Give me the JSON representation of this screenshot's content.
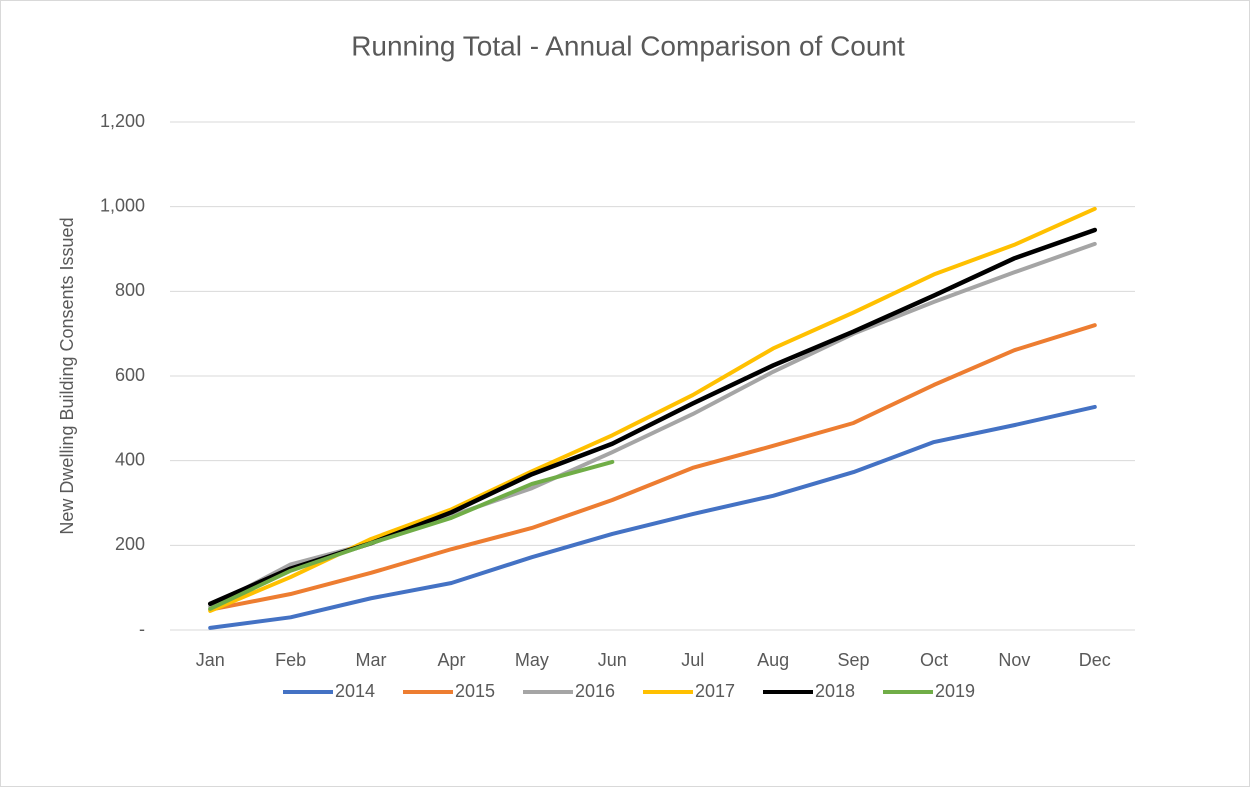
{
  "chart_data": {
    "type": "line",
    "title": "Running Total - Annual Comparison of Count",
    "y_label": "New Dwelling Building Consents Issued",
    "categories": [
      "Jan",
      "Feb",
      "Mar",
      "Apr",
      "May",
      "Jun",
      "Jul",
      "Aug",
      "Sep",
      "Oct",
      "Nov",
      "Dec"
    ],
    "series": [
      {
        "name": "2014",
        "color": "#4472c4",
        "values": [
          5,
          30,
          75,
          111,
          172,
          227,
          274,
          317,
          373,
          444,
          484,
          527
        ]
      },
      {
        "name": "2015",
        "color": "#ed7d31",
        "values": [
          48,
          85,
          135,
          191,
          241,
          307,
          383,
          435,
          489,
          579,
          661,
          720
        ]
      },
      {
        "name": "2016",
        "color": "#a5a5a5",
        "values": [
          55,
          155,
          205,
          270,
          335,
          420,
          510,
          610,
          700,
          775,
          845,
          912
        ]
      },
      {
        "name": "2017",
        "color": "#ffc000",
        "values": [
          45,
          125,
          215,
          285,
          375,
          460,
          555,
          665,
          750,
          840,
          910,
          995
        ]
      },
      {
        "name": "2018",
        "color": "#000000",
        "values": [
          62,
          145,
          205,
          278,
          368,
          440,
          535,
          625,
          705,
          790,
          878,
          945
        ]
      },
      {
        "name": "2019",
        "color": "#70ad47",
        "values": [
          50,
          140,
          205,
          265,
          345,
          397,
          null,
          null,
          null,
          null,
          null,
          null
        ]
      }
    ],
    "ylim": [
      0,
      1200
    ],
    "yticks": [
      {
        "value": 0,
        "label": "-"
      },
      200,
      400,
      600,
      800,
      {
        "value": 1000,
        "label": "1,000"
      },
      {
        "value": 1200,
        "label": "1,200"
      }
    ],
    "grid": true,
    "legend": "bottom"
  }
}
